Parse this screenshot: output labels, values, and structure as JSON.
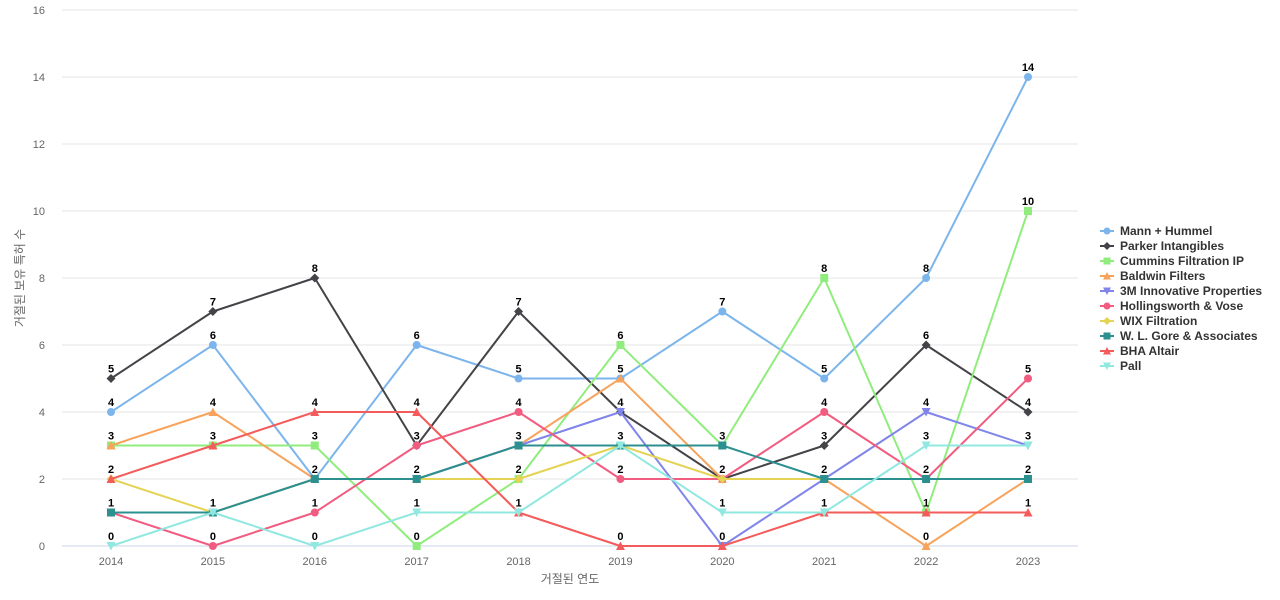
{
  "chart_data": {
    "type": "line",
    "title": "",
    "xlabel": "거절된 연도",
    "ylabel": "거절된 보유 특허 수",
    "ylim": [
      0,
      16
    ],
    "yticks": [
      0,
      2,
      4,
      6,
      8,
      10,
      12,
      14,
      16
    ],
    "grid": true,
    "legend_position": "right",
    "categories": [
      "2014",
      "2015",
      "2016",
      "2017",
      "2018",
      "2019",
      "2020",
      "2021",
      "2022",
      "2023"
    ],
    "series": [
      {
        "name": "Mann + Hummel",
        "color": "#7cb5ec",
        "marker": "circle",
        "values": [
          4,
          6,
          2,
          6,
          5,
          5,
          7,
          5,
          8,
          14
        ]
      },
      {
        "name": "Parker Intangibles",
        "color": "#434348",
        "marker": "diamond",
        "values": [
          5,
          7,
          8,
          3,
          7,
          4,
          2,
          3,
          6,
          4
        ]
      },
      {
        "name": "Cummins Filtration IP",
        "color": "#90ed7d",
        "marker": "square",
        "values": [
          3,
          3,
          3,
          0,
          2,
          6,
          3,
          8,
          1,
          10
        ]
      },
      {
        "name": "Baldwin Filters",
        "color": "#f7a35c",
        "marker": "triangle",
        "values": [
          3,
          4,
          2,
          2,
          3,
          5,
          2,
          2,
          0,
          2
        ]
      },
      {
        "name": "3M Innovative Properties",
        "color": "#8085e9",
        "marker": "triangle-down",
        "values": [
          1,
          1,
          2,
          2,
          3,
          4,
          0,
          2,
          4,
          3
        ]
      },
      {
        "name": "Hollingsworth & Vose",
        "color": "#f15c80",
        "marker": "circle",
        "values": [
          1,
          0,
          1,
          3,
          4,
          2,
          2,
          4,
          2,
          5
        ]
      },
      {
        "name": "WIX Filtration",
        "color": "#e4d354",
        "marker": "diamond",
        "values": [
          2,
          1,
          2,
          2,
          2,
          3,
          2,
          2,
          2,
          2
        ]
      },
      {
        "name": "W. L. Gore & Associates",
        "color": "#2b908f",
        "marker": "square",
        "values": [
          1,
          1,
          2,
          2,
          3,
          3,
          3,
          2,
          2,
          2
        ]
      },
      {
        "name": "BHA Altair",
        "color": "#f45b5b",
        "marker": "triangle",
        "values": [
          2,
          3,
          4,
          4,
          1,
          0,
          0,
          1,
          1,
          1
        ]
      },
      {
        "name": "Pall",
        "color": "#91e8e1",
        "marker": "triangle-down",
        "values": [
          0,
          1,
          0,
          1,
          1,
          3,
          1,
          1,
          3,
          3
        ]
      }
    ],
    "data_labels": [
      [
        {
          "x": "2014",
          "text": "5"
        },
        {
          "x": "2015",
          "text": "7"
        },
        {
          "x": "2016",
          "text": "8"
        },
        {
          "x": "2017",
          "text": "6"
        },
        {
          "x": "2018",
          "text": "7"
        },
        {
          "x": "2019",
          "text": "6"
        },
        {
          "x": "2020",
          "text": "7"
        },
        {
          "x": "2021",
          "text": "8"
        },
        {
          "x": "2022",
          "text": "8"
        },
        {
          "x": "2023",
          "text": "14"
        }
      ]
    ]
  }
}
